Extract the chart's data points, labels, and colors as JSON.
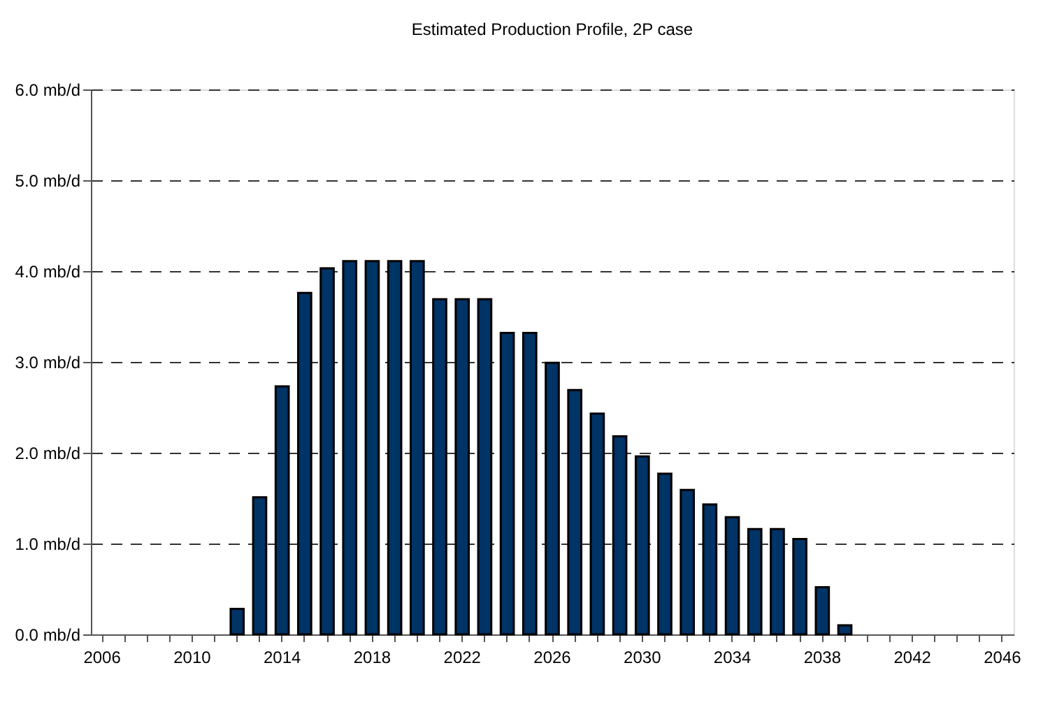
{
  "chart_data": {
    "type": "bar",
    "title": "Estimated Production Profile, 2P case",
    "categories": [
      "2006",
      null,
      null,
      null,
      "2010",
      null,
      null,
      null,
      "2014",
      null,
      null,
      null,
      "2018",
      null,
      null,
      null,
      "2022",
      null,
      null,
      null,
      "2026",
      null,
      null,
      null,
      "2030",
      null,
      null,
      null,
      "2034",
      null,
      null,
      null,
      "2038",
      null,
      null,
      null,
      "2042",
      null,
      null,
      null,
      "2046"
    ],
    "values": [
      null,
      null,
      null,
      null,
      null,
      null,
      0.28,
      1.51,
      2.73,
      3.76,
      4.03,
      4.11,
      4.11,
      4.11,
      4.11,
      3.69,
      3.69,
      3.69,
      3.32,
      3.32,
      2.99,
      2.69,
      2.43,
      2.18,
      1.96,
      1.77,
      1.59,
      1.43,
      1.29,
      1.16,
      1.16,
      1.05,
      0.52,
      0.1,
      null,
      null,
      null,
      null,
      null,
      null,
      null
    ],
    "color": "#003366",
    "ylim": [
      0,
      6
    ],
    "yticks": [
      {
        "value": 0,
        "label": "0.0 mb/d"
      },
      {
        "value": 1,
        "label": "1.0 mb/d"
      },
      {
        "value": 2,
        "label": "2.0 mb/d"
      },
      {
        "value": 3,
        "label": "3.0 mb/d"
      },
      {
        "value": 4,
        "label": "4.0 mb/d"
      },
      {
        "value": 5,
        "label": "5.0 mb/d"
      },
      {
        "value": 6,
        "label": "6.0 mb/d"
      }
    ],
    "grid": "y"
  }
}
